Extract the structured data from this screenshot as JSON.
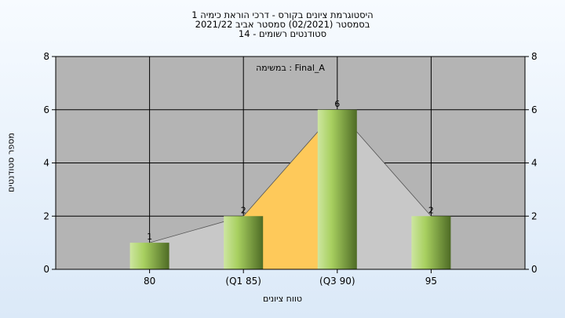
{
  "chart_data": {
    "type": "bar",
    "title": [
      "היסטוגרמת ציונים בקורס - דרכי הוראת כימיה 1",
      "בסמסטר  (02/2021)  סמסטר אביב 2021/22",
      "סטודנטים רשומים - 14"
    ],
    "annotation": "במשימה : Final_A",
    "categories": [
      "80",
      "(Q1 85)",
      "(Q3 90)",
      "95"
    ],
    "values": [
      1,
      2,
      6,
      2
    ],
    "data_labels": [
      "1",
      "2",
      "6",
      "2"
    ],
    "xlabel": "טווח ציונים",
    "ylabel": "מספר סטודנטים",
    "ylim": [
      0,
      8
    ],
    "yticks": [
      0,
      2,
      4,
      6,
      8
    ],
    "grid": true,
    "area_overlay": {
      "gray_series": [
        1,
        2,
        6,
        2
      ],
      "highlight_range": [
        "(Q1 85)",
        "(Q3 90)"
      ]
    },
    "colors": {
      "plot_bg": "#b4b4b4",
      "bar_light": "#cde6a0",
      "bar_dark": "#4e6b25",
      "area_gray": "#c8c8c8",
      "area_highlight": "#fec95a"
    }
  }
}
